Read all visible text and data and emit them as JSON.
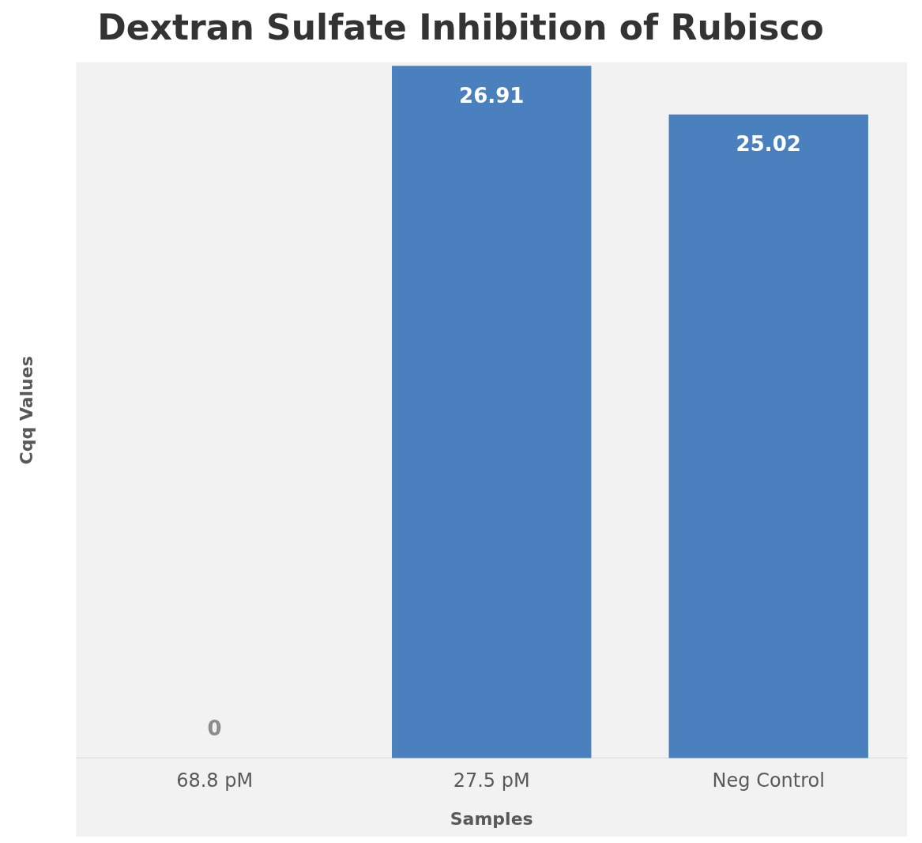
{
  "chart_data": {
    "type": "bar",
    "title": "Dextran Sulfate Inhibition of Rubisco",
    "xlabel": "Samples",
    "ylabel": "Cqq Values",
    "categories": [
      "68.8 pM",
      "27.5 pM",
      "Neg Control"
    ],
    "series": [
      {
        "color": "#4a80bd",
        "values": [
          0,
          26.91,
          25.02
        ]
      }
    ],
    "data_labels": true,
    "tick_labels": "x",
    "grid": false,
    "legend": false
  }
}
